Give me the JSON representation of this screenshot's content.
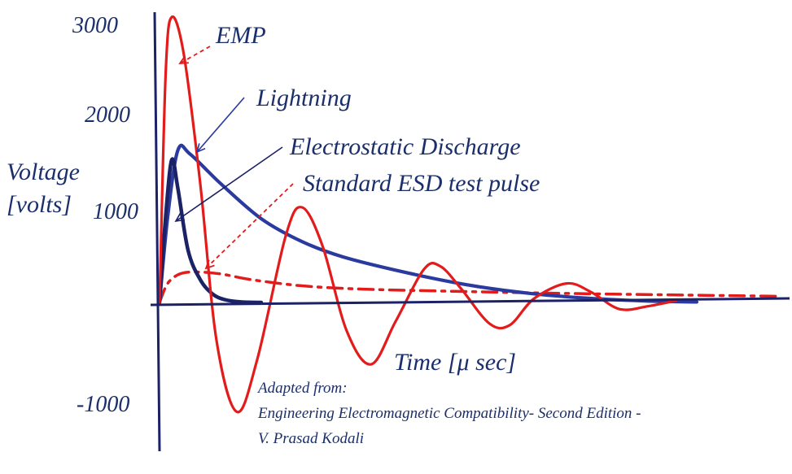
{
  "chart_data": {
    "type": "line",
    "title": "",
    "xlabel": "Time [μ sec]",
    "ylabel_lines": [
      "Voltage",
      "[volts]"
    ],
    "ylim": [
      -1000,
      3000
    ],
    "y_ticks": [
      {
        "value": 3000,
        "label": "3000"
      },
      {
        "value": 2000,
        "label": "2000"
      },
      {
        "value": 1000,
        "label": "1000"
      },
      {
        "value": -1000,
        "label": "-1000"
      }
    ],
    "series": [
      {
        "key": "emp",
        "name": "EMP",
        "color": "#e31b1b",
        "style": "solid",
        "peak_value": 3000,
        "samples": [
          {
            "x": 0.0,
            "y": 0
          },
          {
            "x": 0.03,
            "y": 2400
          },
          {
            "x": 0.06,
            "y": 3000
          },
          {
            "x": 0.12,
            "y": 2600
          },
          {
            "x": 0.2,
            "y": 1250
          },
          {
            "x": 0.28,
            "y": -400
          },
          {
            "x": 0.38,
            "y": -1150
          },
          {
            "x": 0.48,
            "y": -600
          },
          {
            "x": 0.62,
            "y": 700
          },
          {
            "x": 0.7,
            "y": 1000
          },
          {
            "x": 0.8,
            "y": 600
          },
          {
            "x": 0.92,
            "y": -300
          },
          {
            "x": 1.04,
            "y": -650
          },
          {
            "x": 1.16,
            "y": -200
          },
          {
            "x": 1.3,
            "y": 350
          },
          {
            "x": 1.38,
            "y": 380
          },
          {
            "x": 1.48,
            "y": 150
          },
          {
            "x": 1.62,
            "y": -220
          },
          {
            "x": 1.72,
            "y": -240
          },
          {
            "x": 1.84,
            "y": 40
          },
          {
            "x": 2.0,
            "y": 200
          },
          {
            "x": 2.12,
            "y": 110
          },
          {
            "x": 2.26,
            "y": -70
          },
          {
            "x": 2.4,
            "y": -40
          },
          {
            "x": 2.54,
            "y": 20
          }
        ]
      },
      {
        "key": "lightning",
        "name": "Lightning",
        "color": "#2a3a9e",
        "style": "solid",
        "peak_value": 1600,
        "samples": [
          {
            "x": 0.0,
            "y": 0
          },
          {
            "x": 0.04,
            "y": 900
          },
          {
            "x": 0.09,
            "y": 1600
          },
          {
            "x": 0.15,
            "y": 1560
          },
          {
            "x": 0.3,
            "y": 1250
          },
          {
            "x": 0.5,
            "y": 880
          },
          {
            "x": 0.7,
            "y": 640
          },
          {
            "x": 0.9,
            "y": 480
          },
          {
            "x": 1.2,
            "y": 320
          },
          {
            "x": 1.5,
            "y": 190
          },
          {
            "x": 1.8,
            "y": 100
          },
          {
            "x": 2.1,
            "y": 45
          },
          {
            "x": 2.4,
            "y": 15
          },
          {
            "x": 2.64,
            "y": 5
          }
        ]
      },
      {
        "key": "esd",
        "name": "Electrostatic Discharge",
        "color": "#1c2266",
        "style": "solid",
        "peak_value": 1500,
        "samples": [
          {
            "x": 0.0,
            "y": 0
          },
          {
            "x": 0.03,
            "y": 900
          },
          {
            "x": 0.06,
            "y": 1500
          },
          {
            "x": 0.09,
            "y": 1200
          },
          {
            "x": 0.14,
            "y": 550
          },
          {
            "x": 0.2,
            "y": 240
          },
          {
            "x": 0.26,
            "y": 90
          },
          {
            "x": 0.32,
            "y": 30
          },
          {
            "x": 0.4,
            "y": 5
          },
          {
            "x": 0.5,
            "y": 0
          }
        ]
      },
      {
        "key": "esd_test",
        "name": "Standard ESD test pulse",
        "color": "#e31b1b",
        "style": "dash-dot",
        "peak_value": 320,
        "samples": [
          {
            "x": 0.0,
            "y": 0
          },
          {
            "x": 0.04,
            "y": 200
          },
          {
            "x": 0.1,
            "y": 300
          },
          {
            "x": 0.18,
            "y": 320
          },
          {
            "x": 0.3,
            "y": 300
          },
          {
            "x": 0.45,
            "y": 240
          },
          {
            "x": 0.7,
            "y": 175
          },
          {
            "x": 1.0,
            "y": 140
          },
          {
            "x": 1.5,
            "y": 115
          },
          {
            "x": 2.0,
            "y": 95
          },
          {
            "x": 2.5,
            "y": 80
          },
          {
            "x": 3.04,
            "y": 65
          }
        ]
      }
    ]
  },
  "annotation": {
    "lines": [
      "Adapted from:",
      "Engineering Electromagnetic Compatibility- Second Edition -",
      "V. Prasad Kodali"
    ]
  }
}
